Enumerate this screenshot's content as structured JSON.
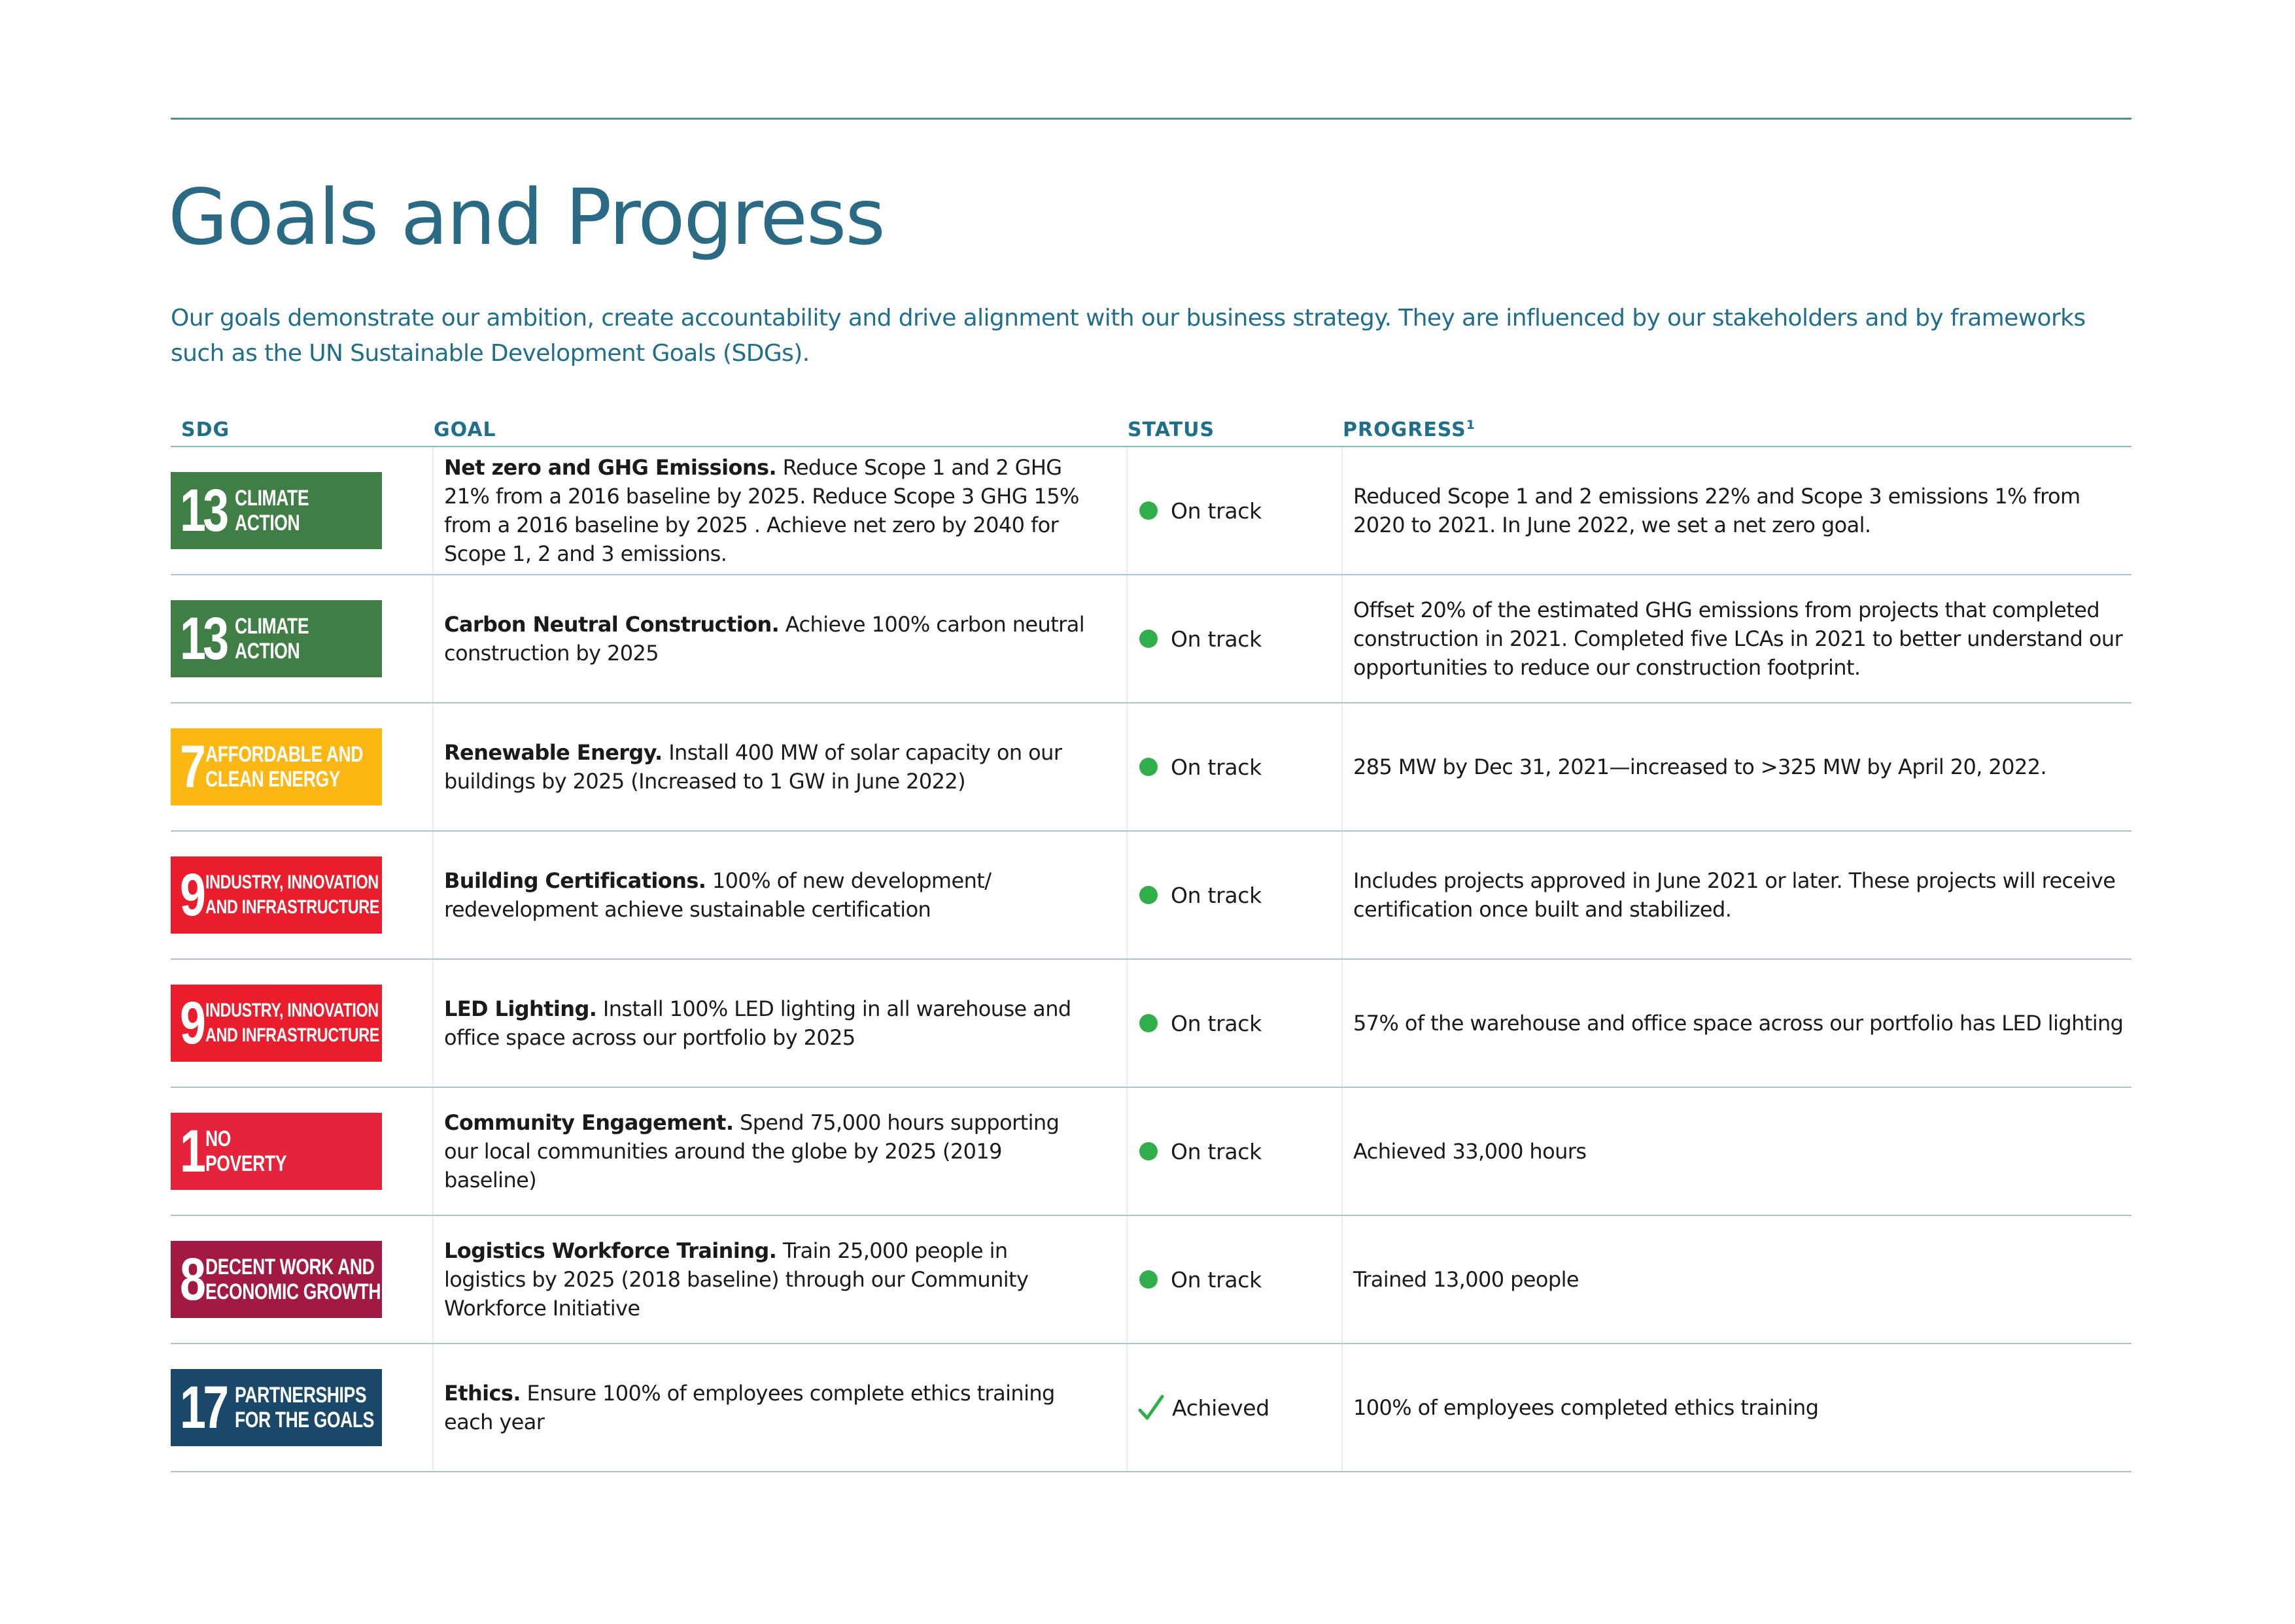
{
  "page": {
    "title": "Goals and Progress",
    "intro": "Our goals demonstrate our ambition, create accountability and drive alignment with our business strategy. They are influenced by our stakeholders and by frameworks such as the UN Sustainable Development Goals (SDGs)."
  },
  "table": {
    "headers": {
      "sdg": "SDG",
      "goal": "GOAL",
      "status": "STATUS",
      "progress": "PROGRESS",
      "progress_footnote": "1"
    },
    "rows": [
      {
        "sdg": {
          "number": "13",
          "label_line1": "CLIMATE",
          "label_line2": "ACTION",
          "color": "#3f7e44"
        },
        "goal_name": "Net zero and GHG Emissions.",
        "goal_desc": " Reduce Scope 1 and 2 GHG 21% from a 2016 baseline by 2025. Reduce Scope 3 GHG 15% from a 2016 baseline by 2025 . Achieve net zero by 2040 for Scope 1, 2 and 3 emissions.",
        "status": "On track",
        "status_icon": "green-dot",
        "progress": "Reduced Scope 1 and 2 emissions 22% and Scope 3 emissions 1% from 2020 to 2021. In June 2022, we set a net zero goal."
      },
      {
        "sdg": {
          "number": "13",
          "label_line1": "CLIMATE",
          "label_line2": "ACTION",
          "color": "#3f7e44"
        },
        "goal_name": "Carbon Neutral Construction.",
        "goal_desc": " Achieve 100% carbon neutral construction by 2025",
        "status": "On track",
        "status_icon": "green-dot",
        "progress": "Offset 20% of the estimated GHG emissions from projects that completed construction in 2021. Completed five LCAs in 2021 to better understand our opportunities to reduce our construction footprint."
      },
      {
        "sdg": {
          "number": "7",
          "label_line1": "AFFORDABLE AND",
          "label_line2": "CLEAN ENERGY",
          "color": "#fcb712"
        },
        "goal_name": "Renewable Energy.",
        "goal_desc": " Install 400 MW of solar capacity on our buildings by 2025 (Increased to 1 GW in June 2022)",
        "status": "On track",
        "status_icon": "green-dot",
        "progress": "285 MW by Dec 31, 2021—increased to >325 MW by April 20, 2022."
      },
      {
        "sdg": {
          "number": "9",
          "label_line1": "INDUSTRY, INNOVATION",
          "label_line2": "AND INFRASTRUCTURE",
          "color": "#ea1d2d"
        },
        "goal_name": "Building Certifications.",
        "goal_desc": " 100% of new development/ redevelopment achieve sustainable certification",
        "status": "On track",
        "status_icon": "green-dot",
        "progress": "Includes projects approved in June 2021 or later. These projects will receive certification once built and stabilized."
      },
      {
        "sdg": {
          "number": "9",
          "label_line1": "INDUSTRY, INNOVATION",
          "label_line2": "AND INFRASTRUCTURE",
          "color": "#ea1d2d"
        },
        "goal_name": "LED Lighting.",
        "goal_desc": " Install 100% LED lighting in all warehouse and office space across our portfolio by 2025",
        "status": "On track",
        "status_icon": "green-dot",
        "progress": "57% of the warehouse and office space across our portfolio has LED lighting"
      },
      {
        "sdg": {
          "number": "1",
          "label_line1": "NO",
          "label_line2": "POVERTY",
          "color": "#e5243b"
        },
        "goal_name": "Community Engagement.",
        "goal_desc": " Spend 75,000 hours supporting our local communities around the globe by 2025 (2019 baseline)",
        "status": "On track",
        "status_icon": "green-dot",
        "progress": "Achieved 33,000 hours"
      },
      {
        "sdg": {
          "number": "8",
          "label_line1": "DECENT WORK AND",
          "label_line2": "ECONOMIC GROWTH",
          "color": "#a21942"
        },
        "goal_name": "Logistics Workforce Training.",
        "goal_desc": " Train 25,000 people in logistics by 2025 (2018 baseline) through our Community Workforce Initiative",
        "status": "On track",
        "status_icon": "green-dot",
        "progress": "Trained 13,000 people"
      },
      {
        "sdg": {
          "number": "17",
          "label_line1": "PARTNERSHIPS",
          "label_line2": "FOR THE GOALS",
          "color": "#19486a"
        },
        "goal_name": "Ethics.",
        "goal_desc": " Ensure 100% of employees complete ethics training each year",
        "status": "Achieved",
        "status_icon": "checkmark",
        "progress": "100% of employees completed ethics training"
      }
    ]
  },
  "colors": {
    "title": "#2a6a84",
    "intro": "#1f6e8c",
    "header": "#1f6e8c",
    "status_on_track": "#2fae4a",
    "check": "#2fae4a"
  }
}
